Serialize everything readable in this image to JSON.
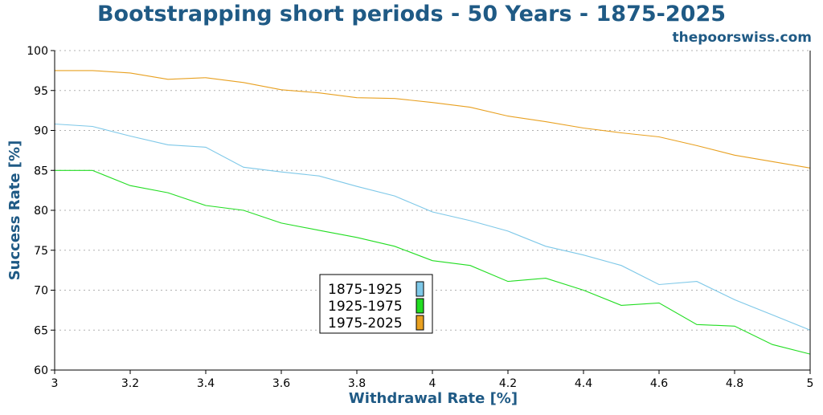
{
  "chart_data": {
    "type": "line",
    "title": "Bootstrapping short periods - 50 Years - 1875-2025",
    "watermark": "thepoorswiss.com",
    "xlabel": "Withdrawal Rate [%]",
    "ylabel": "Success Rate [%]",
    "xlim": [
      3,
      5
    ],
    "ylim": [
      60,
      100
    ],
    "xticks": [
      "3",
      "3.2",
      "3.4",
      "3.6",
      "3.8",
      "4",
      "4.2",
      "4.4",
      "4.6",
      "4.8",
      "5"
    ],
    "yticks": [
      "60",
      "65",
      "70",
      "75",
      "80",
      "85",
      "90",
      "95",
      "100"
    ],
    "grid": "horizontal dotted",
    "legend_position": "center-left",
    "x": [
      3.0,
      3.1,
      3.2,
      3.3,
      3.4,
      3.5,
      3.6,
      3.7,
      3.8,
      3.9,
      4.0,
      4.1,
      4.2,
      4.3,
      4.4,
      4.5,
      4.6,
      4.7,
      4.8,
      4.9,
      5.0
    ],
    "series": [
      {
        "name": "1875-1925",
        "color": "#7ec8e8",
        "values": [
          90.8,
          90.5,
          89.3,
          88.2,
          87.9,
          85.4,
          84.8,
          84.3,
          83.0,
          81.8,
          79.8,
          78.7,
          77.4,
          75.5,
          74.4,
          73.1,
          70.7,
          71.1,
          68.8,
          66.9,
          65.0
        ]
      },
      {
        "name": "1925-1975",
        "color": "#22dd22",
        "values": [
          85.0,
          85.0,
          83.1,
          82.2,
          80.6,
          80.0,
          78.4,
          77.5,
          76.6,
          75.5,
          73.7,
          73.1,
          71.1,
          71.5,
          70.0,
          68.1,
          68.4,
          65.7,
          65.5,
          63.2,
          62.0
        ]
      },
      {
        "name": "1975-2025",
        "color": "#e8a020",
        "values": [
          97.5,
          97.5,
          97.2,
          96.4,
          96.6,
          96.0,
          95.1,
          94.7,
          94.1,
          94.0,
          93.5,
          92.9,
          91.8,
          91.1,
          90.3,
          89.7,
          89.2,
          88.1,
          86.9,
          86.1,
          85.3
        ]
      }
    ]
  }
}
